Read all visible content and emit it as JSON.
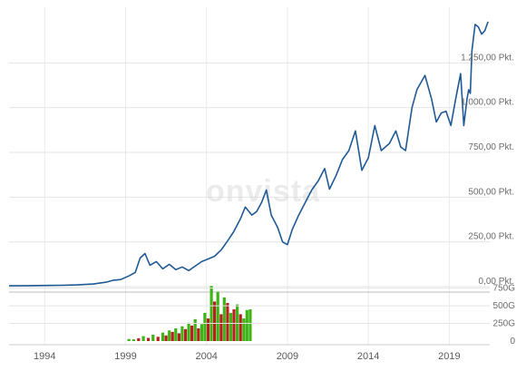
{
  "watermark": "onvista",
  "chart_data": [
    {
      "type": "line",
      "title": "",
      "xlabel": "",
      "ylabel": "",
      "xlim": [
        1991.8,
        2021.5
      ],
      "ylim": [
        -20,
        1510
      ],
      "grid": true,
      "y_ticks": [
        {
          "value": 0,
          "label": "0,00 Pkt."
        },
        {
          "value": 250,
          "label": "250,00 Pkt."
        },
        {
          "value": 500,
          "label": "500,00 Pkt."
        },
        {
          "value": 750,
          "label": "750,00 Pkt."
        },
        {
          "value": 1000,
          "label": "1.000,00 Pkt."
        },
        {
          "value": 1250,
          "label": "1.250,00 Pkt."
        }
      ],
      "x_ticks": [
        {
          "value": 1994,
          "label": "1994"
        },
        {
          "value": 1999,
          "label": "1999"
        },
        {
          "value": 2004,
          "label": "2004"
        },
        {
          "value": 2009,
          "label": "2009"
        },
        {
          "value": 2014,
          "label": "2014"
        },
        {
          "value": 2019,
          "label": "2019"
        }
      ],
      "series": [
        {
          "color": "#1f5a96",
          "x": [
            1991.8,
            1993.0,
            1994.0,
            1995.0,
            1996.0,
            1997.0,
            1997.8,
            1998.2,
            1998.7,
            1999.2,
            1999.6,
            1999.9,
            2000.2,
            2000.5,
            2000.9,
            2001.3,
            2001.7,
            2002.1,
            2002.5,
            2002.9,
            2003.3,
            2003.7,
            2004.1,
            2004.5,
            2004.9,
            2005.3,
            2005.7,
            2006.1,
            2006.4,
            2006.8,
            2007.1,
            2007.4,
            2007.7,
            2008.0,
            2008.4,
            2008.7,
            2009.0,
            2009.3,
            2009.7,
            2010.1,
            2010.5,
            2010.9,
            2011.3,
            2011.6,
            2012.0,
            2012.4,
            2012.8,
            2013.2,
            2013.6,
            2014.0,
            2014.4,
            2014.8,
            2015.3,
            2015.7,
            2016.0,
            2016.3,
            2016.7,
            2017.0,
            2017.5,
            2017.9,
            2018.2,
            2018.5,
            2018.8,
            2019.1,
            2019.4,
            2019.7,
            2019.9,
            2020.1,
            2020.2,
            2020.3,
            2020.4,
            2020.6,
            2020.8,
            2021.0,
            2021.2,
            2021.4
          ],
          "values": [
            5,
            6,
            7,
            8,
            10,
            15,
            25,
            35,
            40,
            60,
            80,
            160,
            185,
            120,
            140,
            100,
            125,
            95,
            110,
            90,
            115,
            140,
            155,
            170,
            205,
            255,
            310,
            380,
            445,
            400,
            420,
            470,
            540,
            400,
            330,
            250,
            235,
            320,
            400,
            470,
            540,
            590,
            660,
            545,
            620,
            710,
            760,
            870,
            650,
            720,
            900,
            760,
            800,
            870,
            780,
            760,
            1000,
            1100,
            1180,
            1050,
            920,
            970,
            980,
            900,
            1050,
            1190,
            900,
            1050,
            1100,
            1080,
            1320,
            1465,
            1450,
            1410,
            1430,
            1480
          ]
        }
      ]
    },
    {
      "type": "bar",
      "title": "",
      "xlabel": "",
      "ylabel": "",
      "ylim": [
        0,
        900
      ],
      "y_ticks": [
        {
          "value": 0,
          "label": "0"
        },
        {
          "value": 250,
          "label": "250G"
        },
        {
          "value": 500,
          "label": "500G"
        },
        {
          "value": 750,
          "label": "750G"
        }
      ],
      "bar_colors": {
        "up": "#3cb415",
        "down": "#b81f1f"
      },
      "x": [
        1999.2,
        1999.5,
        1999.8,
        2000.1,
        2000.4,
        2000.7,
        2001.0,
        2001.3,
        2001.5,
        2001.7,
        2001.9,
        2002.1,
        2002.3,
        2002.5,
        2002.7,
        2002.9,
        2003.1,
        2003.3,
        2003.5,
        2003.7,
        2003.9,
        2004.1,
        2004.3,
        2004.5,
        2004.7,
        2004.9,
        2005.1,
        2005.3,
        2005.5,
        2005.7,
        2005.9,
        2006.1,
        2006.3,
        2006.5,
        2006.7
      ],
      "values": [
        30,
        25,
        40,
        70,
        45,
        90,
        60,
        120,
        80,
        150,
        130,
        180,
        110,
        210,
        170,
        260,
        220,
        310,
        180,
        240,
        400,
        320,
        780,
        560,
        700,
        380,
        620,
        540,
        400,
        450,
        520,
        380,
        320,
        440,
        450
      ],
      "direction": [
        "up",
        "up",
        "down",
        "up",
        "down",
        "up",
        "down",
        "up",
        "down",
        "up",
        "down",
        "up",
        "down",
        "up",
        "down",
        "up",
        "down",
        "up",
        "down",
        "up",
        "up",
        "down",
        "up",
        "down",
        "up",
        "down",
        "up",
        "down",
        "up",
        "down",
        "up",
        "down",
        "up",
        "up",
        "up"
      ]
    }
  ]
}
